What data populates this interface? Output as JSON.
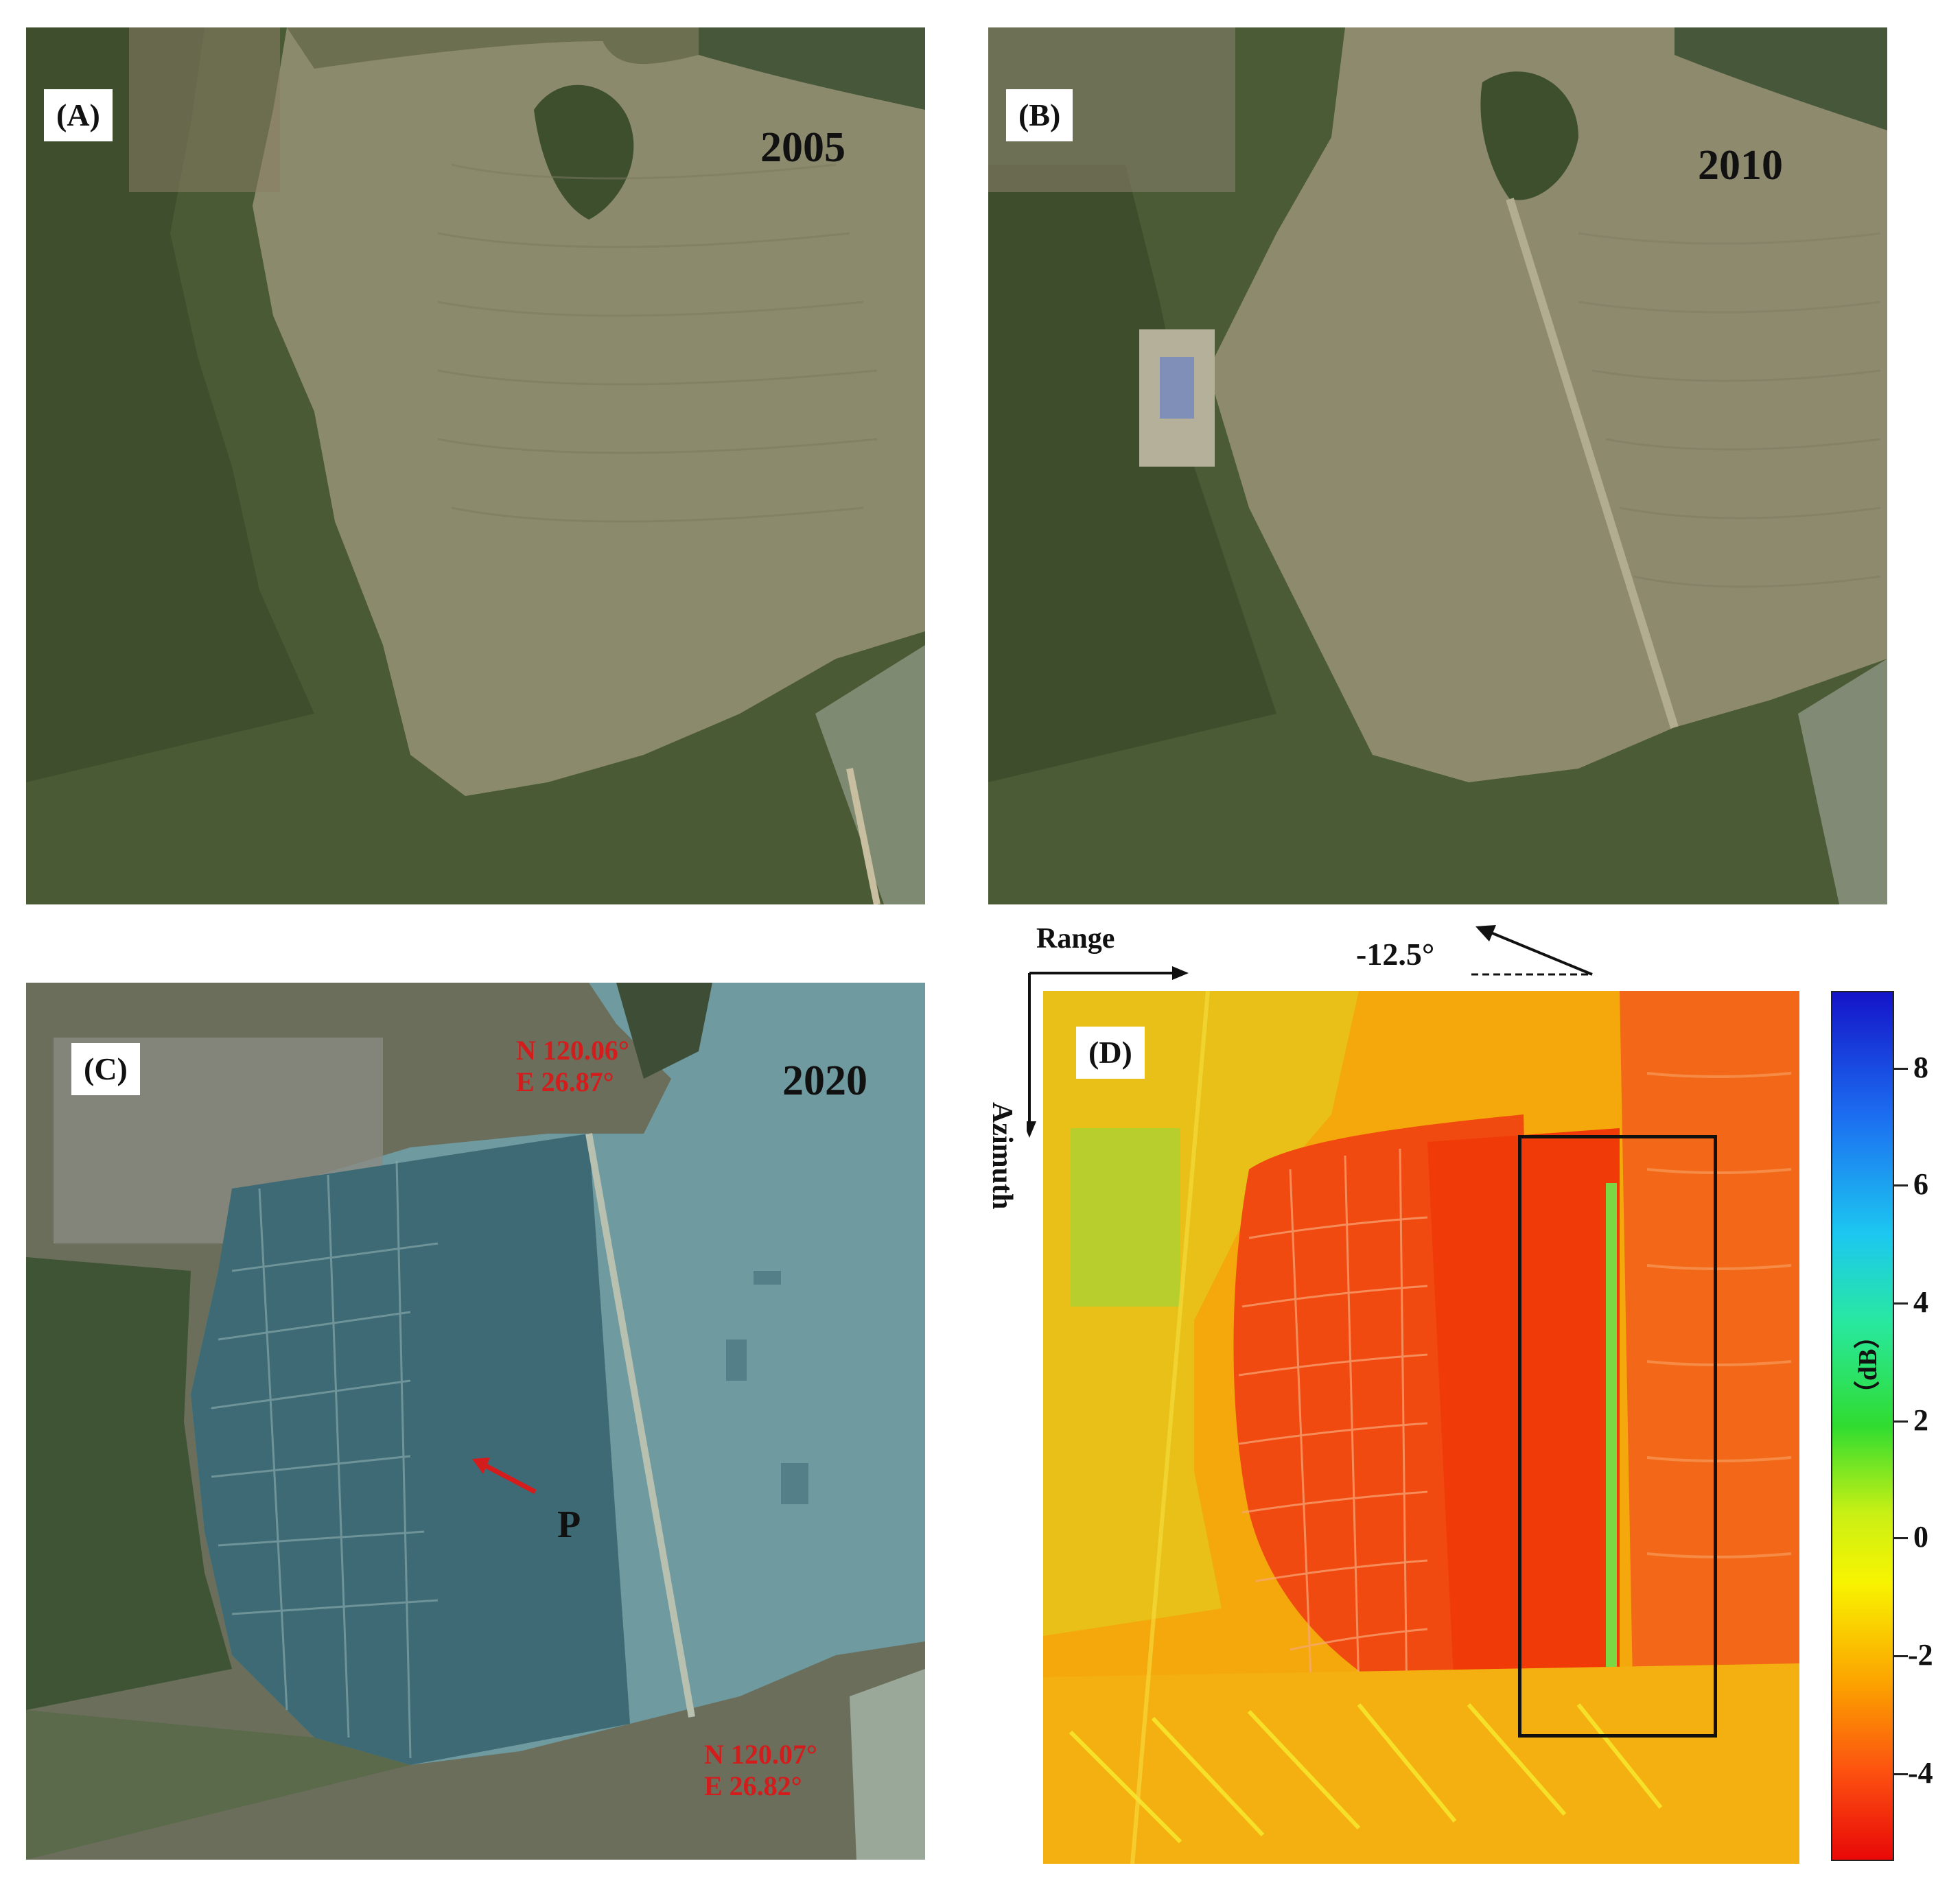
{
  "panels": {
    "a": {
      "tag": "(A)",
      "year": "2005"
    },
    "b": {
      "tag": "(B)",
      "year": "2010"
    },
    "c": {
      "tag": "(C)",
      "year": "2020",
      "coord_top_1": "N 120.06°",
      "coord_top_2": "E 26.87°",
      "coord_bottom_1": "N 120.07°",
      "coord_bottom_2": "E 26.82°",
      "point_label": "P"
    },
    "d": {
      "tag": "(D)",
      "range_label": "Range",
      "azimuth_label": "Azimuth",
      "heading_angle": "-12.5°"
    }
  },
  "colorbar": {
    "unit": "（dB）",
    "ticks": [
      "8",
      "6",
      "4",
      "2",
      "0",
      "-2",
      "-4"
    ]
  },
  "colors": {
    "coord_text": "#d41c1c",
    "arrow": "#d41c1c"
  }
}
